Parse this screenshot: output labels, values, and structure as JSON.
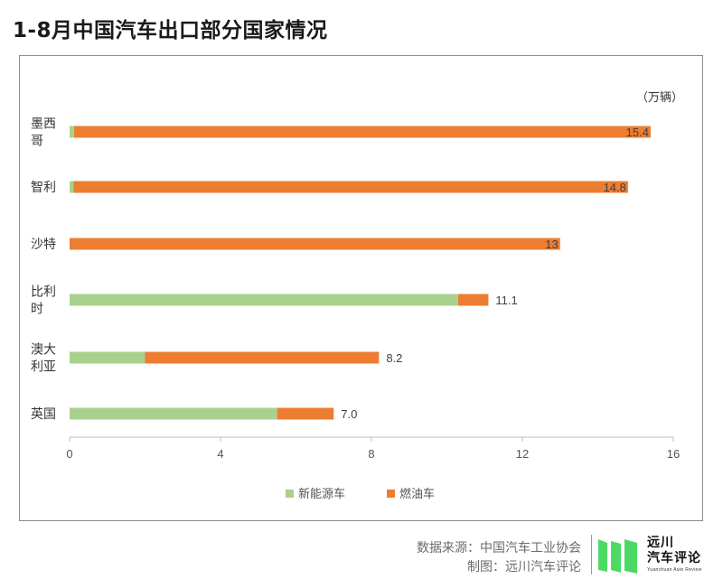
{
  "page": {
    "title": "1-8月中国汽车出口部分国家情况"
  },
  "chart_data": {
    "type": "bar",
    "orientation": "horizontal",
    "stacked": true,
    "unit_label": "（万辆）",
    "categories": [
      [
        "墨西",
        "哥"
      ],
      [
        "智利"
      ],
      [
        "沙特"
      ],
      [
        "比利",
        "时"
      ],
      [
        "澳大",
        "利亚"
      ],
      [
        "英国"
      ]
    ],
    "series": [
      {
        "name": "新能源车",
        "color": "#a9d18e",
        "values": [
          0.12,
          0.1,
          0.0,
          10.3,
          2.0,
          5.5
        ]
      },
      {
        "name": "燃油车",
        "color": "#ed7d31",
        "values": [
          15.28,
          14.7,
          13.0,
          0.8,
          6.2,
          1.5
        ]
      }
    ],
    "total_labels": [
      "15.4",
      "14.8",
      "13",
      "11.1",
      "8.2",
      "7.0"
    ],
    "x_ticks": [
      "0",
      "4",
      "8",
      "12",
      "16"
    ],
    "xlim": [
      0,
      16
    ],
    "grid": false,
    "legend_position": "bottom"
  },
  "footer": {
    "source": "数据来源：中国汽车工业协会",
    "credit": "制图：远川汽车评论"
  },
  "brand": {
    "name_line1": "远川",
    "name_line2": "汽车评论",
    "subtitle": "Yuanchuan Auto Review",
    "logo_color": "#4cd964"
  }
}
